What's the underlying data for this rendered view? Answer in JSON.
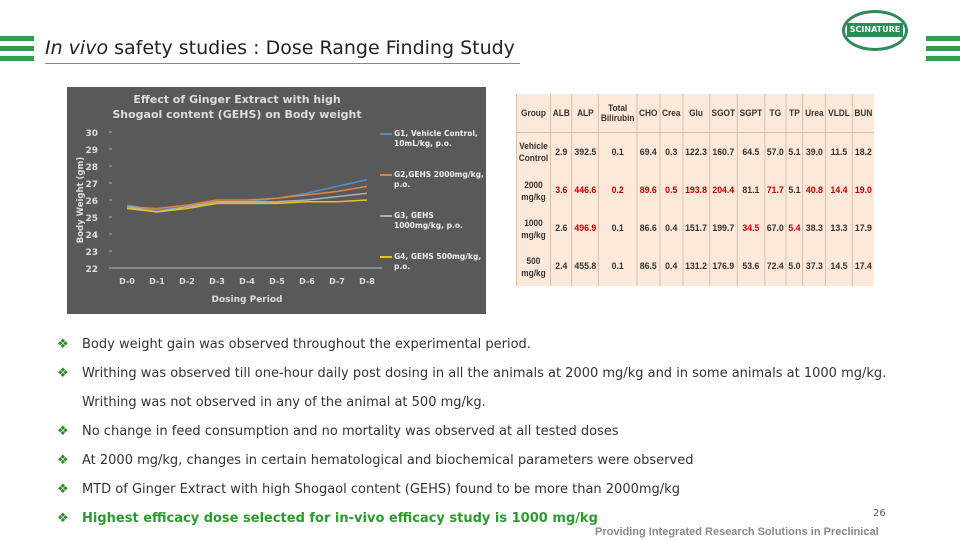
{
  "header": {
    "title_italic": "In vivo",
    "title_rest": "safety studies : Dose Range Finding Study",
    "logo": "SCINATURE"
  },
  "chart_data": {
    "type": "line",
    "title": "Effect of Ginger Extract with high Shogaol content (GEHS) on Body weight",
    "x_label": "Dosing Period",
    "y_label": "Body Weight (gm)",
    "categories": [
      "D-0",
      "D-1",
      "D-2",
      "D-3",
      "D-4",
      "D-5",
      "D-6",
      "D-7",
      "D-8"
    ],
    "ylim": [
      22,
      30
    ],
    "yticks": [
      22,
      23,
      24,
      25,
      26,
      27,
      28,
      29,
      30
    ],
    "series": [
      {
        "name": "G1, Vehicle Control, 10mL/kg, p.o.",
        "color": "#4f8fd0",
        "values": [
          25.7,
          25.4,
          25.6,
          25.8,
          25.9,
          26.1,
          26.4,
          26.8,
          27.2
        ]
      },
      {
        "name": "G2,GEHS 2000mg/kg, p.o.",
        "color": "#e8823a",
        "values": [
          25.6,
          25.5,
          25.7,
          26.0,
          26.0,
          26.1,
          26.3,
          26.5,
          26.8
        ]
      },
      {
        "name": "G3, GEHS 1000mg/kg, p.o.",
        "color": "#b0b0b0",
        "values": [
          25.6,
          25.3,
          25.6,
          25.9,
          25.9,
          25.9,
          26.0,
          26.2,
          26.4
        ]
      },
      {
        "name": "G4, GEHS 500mg/kg, p.o.",
        "color": "#e8c020",
        "values": [
          25.5,
          25.3,
          25.5,
          25.8,
          25.8,
          25.8,
          25.9,
          25.9,
          26.0
        ]
      }
    ]
  },
  "table": {
    "header": [
      "Group",
      "ALB",
      "ALP",
      "Total Bilirubin",
      "CHO",
      "Crea",
      "Glu",
      "SGOT",
      "SGPT",
      "TG",
      "TP",
      "Urea",
      "VLDL",
      "BUN"
    ],
    "rows": [
      [
        "Vehicle Control",
        "2.9",
        "392.5",
        "0.1",
        "69.4",
        "0.3",
        "122.3",
        "160.7",
        "64.5",
        "57.0",
        "5.1",
        "39.0",
        "11.5",
        "18.2"
      ],
      [
        "2000 mg/kg",
        {
          "text": "3.6",
          "color": "#c00000"
        },
        {
          "text": "446.6",
          "color": "#c00000"
        },
        {
          "text": "0.2",
          "color": "#c00000"
        },
        {
          "text": "89.6",
          "color": "#c00000"
        },
        {
          "text": "0.5",
          "color": "#c00000"
        },
        {
          "text": "193.8",
          "color": "#c00000"
        },
        {
          "text": "204.4",
          "color": "#c00000"
        },
        "81.1",
        {
          "text": "71.7",
          "color": "#c00000"
        },
        "5.1",
        {
          "text": "40.8",
          "color": "#c00000"
        },
        {
          "text": "14.4",
          "color": "#c00000"
        },
        {
          "text": "19.0",
          "color": "#c00000"
        }
      ],
      [
        "1000 mg/kg",
        "2.6",
        {
          "text": "496.9",
          "color": "#c00000"
        },
        "0.1",
        "86.6",
        "0.4",
        "151.7",
        "199.7",
        {
          "text": "34.5",
          "color": "#c00000"
        },
        "67.0",
        {
          "text": "5.4",
          "color": "#c00000"
        },
        "38.3",
        "13.3",
        "17.9"
      ],
      [
        "500 mg/kg",
        "2.4",
        "455.8",
        "0.1",
        "86.5",
        "0.4",
        "131.2",
        "176.9",
        "53.6",
        "72.4",
        "5.0",
        "37.3",
        "14.5",
        "17.4"
      ]
    ]
  },
  "bullets": [
    "Body weight gain was observed throughout the experimental period.",
    "Writhing was observed till one-hour daily post dosing in all the animals at 2000 mg/kg and in some animals at 1000 mg/kg.",
    "Writhing was not observed in any of the animal at 500 mg/kg.",
    "No change in feed consumption and no mortality was observed at all tested doses",
    "At 2000 mg/kg, changes in certain hematological and biochemical parameters were observed",
    "MTD of Ginger Extract with high Shogaol content (GEHS) found to be more than 2000mg/kg",
    "Highest efficacy dose selected for in-vivo efficacy study is 1000 mg/kg"
  ],
  "footer": {
    "page": "26",
    "text": "Providing Integrated Research Solutions in Preclinical"
  }
}
